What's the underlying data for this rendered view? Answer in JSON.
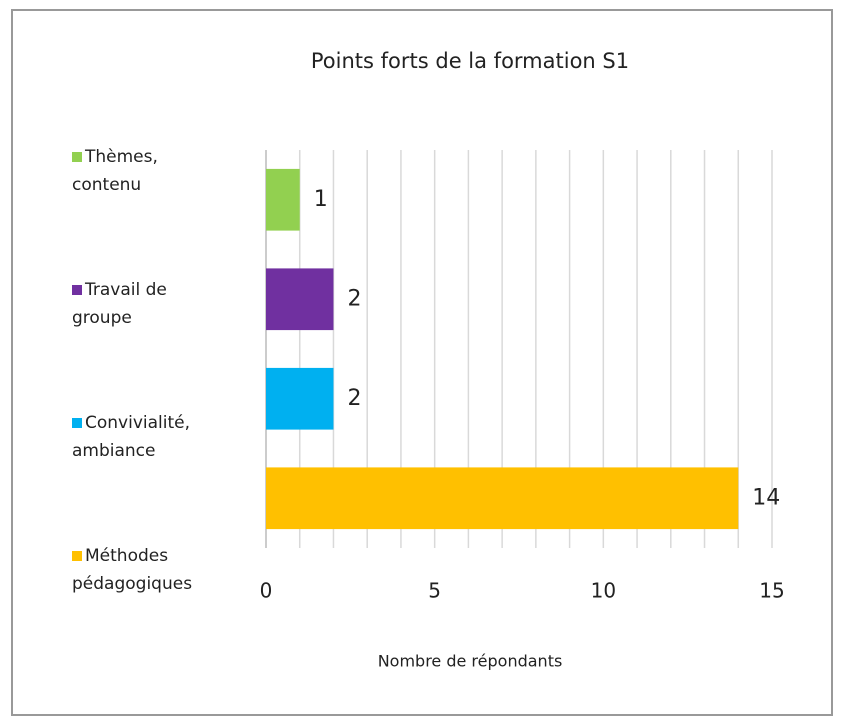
{
  "chart_data": {
    "type": "bar",
    "orientation": "horizontal",
    "title": "Points forts de la formation S1",
    "x_label": "Nombre de répondants",
    "series": [
      {
        "name": "Thèmes, contenu",
        "color": "#92d050",
        "values": [
          1
        ]
      },
      {
        "name": "Travail de groupe",
        "color": "#7030a0",
        "values": [
          2
        ]
      },
      {
        "name": "Convivialité, ambiance",
        "color": "#00b0f0",
        "values": [
          2
        ]
      },
      {
        "name": "Méthodes pédagogiques",
        "color": "#ffc000",
        "values": [
          14
        ]
      }
    ],
    "xlim": [
      0,
      15
    ],
    "xticks": [
      0,
      5,
      10,
      15
    ],
    "x_minor_ticks": [
      1,
      2,
      3,
      4,
      6,
      7,
      8,
      9,
      11,
      12,
      13,
      14
    ],
    "grid": true,
    "legend": "left"
  }
}
